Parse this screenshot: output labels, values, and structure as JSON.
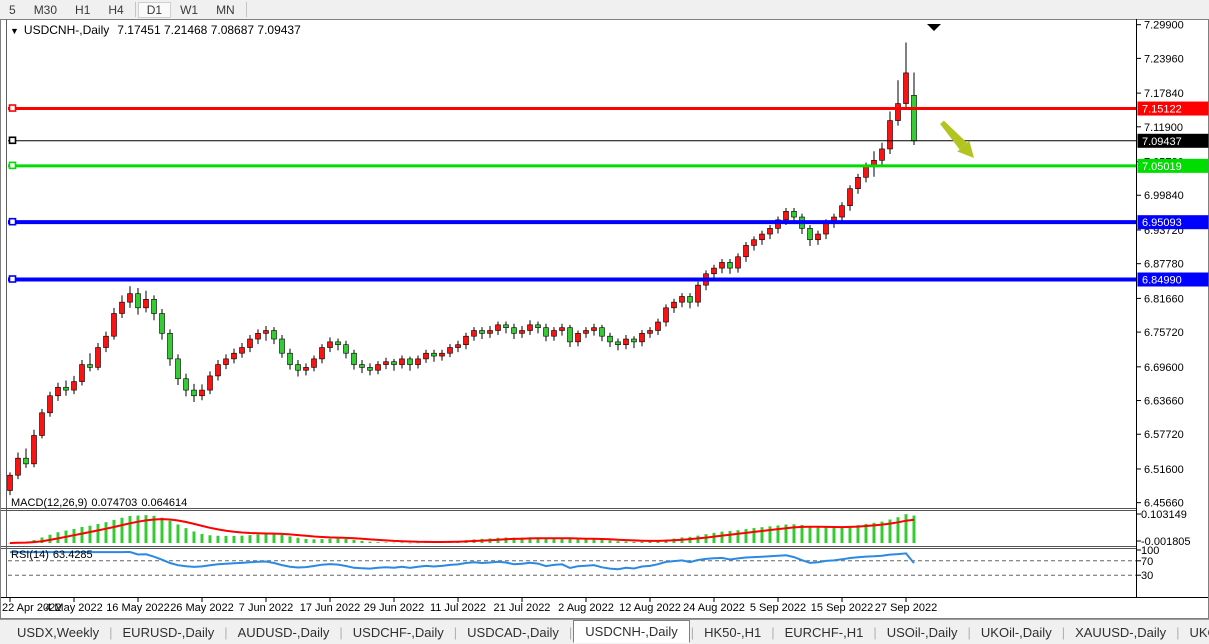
{
  "toolbar": {
    "timeframes": [
      "5",
      "M30",
      "H1",
      "H4",
      "D1",
      "W1",
      "MN"
    ],
    "active": "D1"
  },
  "chart": {
    "symbol_label": "USDCNH-,Daily",
    "ohlc": "7.17451 7.21468 7.08687 7.09437",
    "open": "7.17451",
    "high": "7.21468",
    "low": "7.08687",
    "close": "7.09437",
    "dropdown_icon": "▼"
  },
  "price_axis": {
    "ticks": [
      {
        "label": "7.29900",
        "value": 7.299
      },
      {
        "label": "7.23960",
        "value": 7.2396
      },
      {
        "label": "7.17840",
        "value": 7.1784
      },
      {
        "label": "7.11900",
        "value": 7.119
      },
      {
        "label": "7.05780",
        "value": 7.0578
      },
      {
        "label": "6.99840",
        "value": 6.9984
      },
      {
        "label": "6.93720",
        "value": 6.9372
      },
      {
        "label": "6.87780",
        "value": 6.8778
      },
      {
        "label": "6.81660",
        "value": 6.8166
      },
      {
        "label": "6.75720",
        "value": 6.7572
      },
      {
        "label": "6.69600",
        "value": 6.696
      },
      {
        "label": "6.63660",
        "value": 6.6366
      },
      {
        "label": "6.57720",
        "value": 6.5772
      },
      {
        "label": "6.51600",
        "value": 6.516
      },
      {
        "label": "6.45660",
        "value": 6.4566
      }
    ]
  },
  "levels": [
    {
      "label": "7.15122",
      "value": 7.15122,
      "color": "#ff0000",
      "width": 3,
      "name": "resistance-line-red"
    },
    {
      "label": "7.09437",
      "value": 7.09437,
      "color": "#000000",
      "width": 1,
      "name": "current-price-line"
    },
    {
      "label": "7.05019",
      "value": 7.05019,
      "color": "#00dd00",
      "width": 3,
      "name": "support-line-green"
    },
    {
      "label": "6.95093",
      "value": 6.95093,
      "color": "#0000ff",
      "width": 4,
      "name": "support-line-blue-upper"
    },
    {
      "label": "6.84990",
      "value": 6.8499,
      "color": "#0000ff",
      "width": 4,
      "name": "support-line-blue-lower"
    }
  ],
  "chart_data": {
    "type": "candlestick",
    "symbol": "USDCNH-",
    "timeframe": "Daily",
    "bull_color": "#fe1111",
    "bear_color": "#33cc33",
    "wick_color": "#000000",
    "y_range": [
      6.4472,
      7.3055
    ],
    "x_labels": [
      {
        "label": "22 Apr 2022",
        "index": 0
      },
      {
        "label": "4 May 2022",
        "index": 8
      },
      {
        "label": "16 May 2022",
        "index": 16
      },
      {
        "label": "26 May 2022",
        "index": 24
      },
      {
        "label": "7 Jun 2022",
        "index": 32
      },
      {
        "label": "17 Jun 2022",
        "index": 40
      },
      {
        "label": "29 Jun 2022",
        "index": 48
      },
      {
        "label": "11 Jul 2022",
        "index": 56
      },
      {
        "label": "21 Jul 2022",
        "index": 64
      },
      {
        "label": "2 Aug 2022",
        "index": 72
      },
      {
        "label": "12 Aug 2022",
        "index": 80
      },
      {
        "label": "24 Aug 2022",
        "index": 88
      },
      {
        "label": "5 Sep 2022",
        "index": 96
      },
      {
        "label": "15 Sep 2022",
        "index": 104
      },
      {
        "label": "27 Sep 2022",
        "index": 112
      }
    ],
    "candles": [
      [
        6.478,
        6.51,
        6.47,
        6.505
      ],
      [
        6.505,
        6.545,
        6.498,
        6.535
      ],
      [
        6.535,
        6.552,
        6.518,
        6.525
      ],
      [
        6.525,
        6.585,
        6.519,
        6.575
      ],
      [
        6.575,
        6.622,
        6.57,
        6.615
      ],
      [
        6.615,
        6.652,
        6.608,
        6.645
      ],
      [
        6.645,
        6.668,
        6.636,
        6.66
      ],
      [
        6.66,
        6.672,
        6.645,
        6.655
      ],
      [
        6.655,
        6.68,
        6.648,
        6.67
      ],
      [
        6.67,
        6.708,
        6.663,
        6.7
      ],
      [
        6.7,
        6.72,
        6.688,
        6.695
      ],
      [
        6.695,
        6.738,
        6.69,
        6.73
      ],
      [
        6.73,
        6.758,
        6.722,
        6.75
      ],
      [
        6.75,
        6.8,
        6.744,
        6.79
      ],
      [
        6.79,
        6.822,
        6.782,
        6.81
      ],
      [
        6.81,
        6.838,
        6.8,
        6.825
      ],
      [
        6.825,
        6.835,
        6.788,
        6.8
      ],
      [
        6.8,
        6.83,
        6.792,
        6.815
      ],
      [
        6.815,
        6.822,
        6.778,
        6.79
      ],
      [
        6.79,
        6.798,
        6.744,
        6.755
      ],
      [
        6.755,
        6.762,
        6.698,
        6.71
      ],
      [
        6.71,
        6.718,
        6.664,
        6.675
      ],
      [
        6.675,
        6.684,
        6.644,
        6.655
      ],
      [
        6.655,
        6.666,
        6.634,
        6.645
      ],
      [
        6.645,
        6.665,
        6.637,
        6.655
      ],
      [
        6.655,
        6.688,
        6.648,
        6.68
      ],
      [
        6.68,
        6.708,
        6.672,
        6.7
      ],
      [
        6.7,
        6.718,
        6.692,
        6.71
      ],
      [
        6.71,
        6.728,
        6.702,
        6.72
      ],
      [
        6.72,
        6.738,
        6.712,
        6.73
      ],
      [
        6.73,
        6.752,
        6.722,
        6.745
      ],
      [
        6.745,
        6.762,
        6.736,
        6.755
      ],
      [
        6.755,
        6.768,
        6.742,
        6.76
      ],
      [
        6.76,
        6.766,
        6.736,
        6.745
      ],
      [
        6.745,
        6.752,
        6.712,
        6.72
      ],
      [
        6.72,
        6.728,
        6.691,
        6.7
      ],
      [
        6.7,
        6.708,
        6.679,
        6.69
      ],
      [
        6.69,
        6.702,
        6.681,
        6.695
      ],
      [
        6.695,
        6.716,
        6.688,
        6.71
      ],
      [
        6.71,
        6.736,
        6.702,
        6.73
      ],
      [
        6.73,
        6.748,
        6.722,
        6.74
      ],
      [
        6.74,
        6.746,
        6.725,
        6.735
      ],
      [
        6.735,
        6.742,
        6.711,
        6.72
      ],
      [
        6.72,
        6.726,
        6.691,
        6.7
      ],
      [
        6.7,
        6.708,
        6.685,
        6.695
      ],
      [
        6.695,
        6.702,
        6.681,
        6.69
      ],
      [
        6.69,
        6.706,
        6.683,
        6.7
      ],
      [
        6.7,
        6.712,
        6.692,
        6.705
      ],
      [
        6.705,
        6.71,
        6.689,
        6.7
      ],
      [
        6.7,
        6.716,
        6.693,
        6.71
      ],
      [
        6.71,
        6.714,
        6.689,
        6.7
      ],
      [
        6.7,
        6.716,
        6.693,
        6.71
      ],
      [
        6.71,
        6.726,
        6.703,
        6.72
      ],
      [
        6.72,
        6.726,
        6.705,
        6.715
      ],
      [
        6.715,
        6.726,
        6.707,
        6.72
      ],
      [
        6.72,
        6.736,
        6.713,
        6.73
      ],
      [
        6.73,
        6.742,
        6.722,
        6.735
      ],
      [
        6.735,
        6.756,
        6.727,
        6.75
      ],
      [
        6.75,
        6.766,
        6.742,
        6.76
      ],
      [
        6.76,
        6.766,
        6.745,
        6.755
      ],
      [
        6.755,
        6.768,
        6.747,
        6.76
      ],
      [
        6.76,
        6.776,
        6.752,
        6.77
      ],
      [
        6.77,
        6.776,
        6.755,
        6.765
      ],
      [
        6.765,
        6.772,
        6.745,
        6.755
      ],
      [
        6.755,
        6.768,
        6.747,
        6.76
      ],
      [
        6.76,
        6.778,
        6.752,
        6.77
      ],
      [
        6.77,
        6.776,
        6.755,
        6.765
      ],
      [
        6.765,
        6.772,
        6.741,
        6.75
      ],
      [
        6.75,
        6.766,
        6.742,
        6.76
      ],
      [
        6.76,
        6.772,
        6.751,
        6.765
      ],
      [
        6.765,
        6.77,
        6.731,
        6.74
      ],
      [
        6.74,
        6.76,
        6.732,
        6.755
      ],
      [
        6.755,
        6.766,
        6.747,
        6.76
      ],
      [
        6.76,
        6.772,
        6.751,
        6.765
      ],
      [
        6.765,
        6.77,
        6.741,
        6.75
      ],
      [
        6.75,
        6.756,
        6.731,
        6.74
      ],
      [
        6.74,
        6.746,
        6.725,
        6.735
      ],
      [
        6.735,
        6.752,
        6.727,
        6.745
      ],
      [
        6.745,
        6.75,
        6.729,
        6.74
      ],
      [
        6.74,
        6.761,
        6.732,
        6.755
      ],
      [
        6.755,
        6.766,
        6.747,
        6.76
      ],
      [
        6.76,
        6.781,
        6.752,
        6.775
      ],
      [
        6.775,
        6.806,
        6.767,
        6.8
      ],
      [
        6.8,
        6.816,
        6.791,
        6.81
      ],
      [
        6.81,
        6.826,
        6.801,
        6.82
      ],
      [
        6.82,
        6.826,
        6.799,
        6.81
      ],
      [
        6.81,
        6.846,
        6.802,
        6.84
      ],
      [
        6.84,
        6.866,
        6.831,
        6.86
      ],
      [
        6.86,
        6.876,
        6.851,
        6.87
      ],
      [
        6.87,
        6.886,
        6.861,
        6.88
      ],
      [
        6.88,
        6.886,
        6.86,
        6.87
      ],
      [
        6.87,
        6.896,
        6.862,
        6.89
      ],
      [
        6.89,
        6.916,
        6.881,
        6.91
      ],
      [
        6.91,
        6.926,
        6.901,
        6.92
      ],
      [
        6.92,
        6.936,
        6.911,
        6.93
      ],
      [
        6.93,
        6.946,
        6.921,
        6.94
      ],
      [
        6.94,
        6.961,
        6.931,
        6.955
      ],
      [
        6.955,
        6.976,
        6.946,
        6.97
      ],
      [
        6.97,
        6.976,
        6.95,
        6.96
      ],
      [
        6.96,
        6.966,
        6.93,
        6.94
      ],
      [
        6.94,
        6.946,
        6.909,
        6.92
      ],
      [
        6.92,
        6.936,
        6.911,
        6.93
      ],
      [
        6.93,
        6.956,
        6.921,
        6.95
      ],
      [
        6.95,
        6.966,
        6.941,
        6.96
      ],
      [
        6.96,
        6.986,
        6.951,
        6.98
      ],
      [
        6.98,
        7.016,
        6.971,
        7.01
      ],
      [
        7.01,
        7.036,
        7.001,
        7.03
      ],
      [
        7.03,
        7.056,
        7.021,
        7.05
      ],
      [
        7.05,
        7.076,
        7.031,
        7.06
      ],
      [
        7.06,
        7.091,
        7.049,
        7.08
      ],
      [
        7.08,
        7.146,
        7.071,
        7.13
      ],
      [
        7.13,
        7.201,
        7.121,
        7.16
      ],
      [
        7.16,
        7.2675,
        7.149,
        7.214
      ],
      [
        7.17451,
        7.21468,
        7.08687,
        7.09437
      ]
    ],
    "indicators": {
      "macd": {
        "label": "MACD(12,26,9)",
        "main_value": "0.074703",
        "signal_value": "0.064614",
        "axis_max": "0.103149",
        "axis_min": "-0.001805",
        "histogram_color": "#33cc33",
        "signal_color": "#ff0000"
      },
      "rsi": {
        "label": "RSI(14)",
        "value": "63.4285",
        "axis_labels": [
          "100",
          "70",
          "30"
        ],
        "levels": [
          70,
          30
        ],
        "line_color": "#2a8ae2"
      }
    },
    "annotations": [
      {
        "type": "arrow",
        "name": "sell-direction-arrow",
        "color": "#b2c41f",
        "from_index": 116.5,
        "from_price": 7.127,
        "to_index": 120.5,
        "to_price": 7.064
      },
      {
        "type": "marker",
        "name": "top-marker-triangle",
        "color": "#000000",
        "index": 115.5
      }
    ]
  },
  "tabs": {
    "items": [
      {
        "label": "USDX,Weekly",
        "active": false
      },
      {
        "label": "EURUSD-,Daily",
        "active": false
      },
      {
        "label": "AUDUSD-,Daily",
        "active": false
      },
      {
        "label": "USDCHF-,Daily",
        "active": false
      },
      {
        "label": "USDCAD-,Daily",
        "active": false
      },
      {
        "label": "USDCNH-,Daily",
        "active": true
      },
      {
        "label": "HK50-,H1",
        "active": false
      },
      {
        "label": "EURCHF-,H1",
        "active": false
      },
      {
        "label": "USOil-,Daily",
        "active": false
      },
      {
        "label": "UKOil-,Daily",
        "active": false
      },
      {
        "label": "XAUUSD-,Daily",
        "active": false
      },
      {
        "label": "UKOil-,Da",
        "active": false
      }
    ],
    "scroll_left": "◂",
    "scroll_right": "▸"
  }
}
